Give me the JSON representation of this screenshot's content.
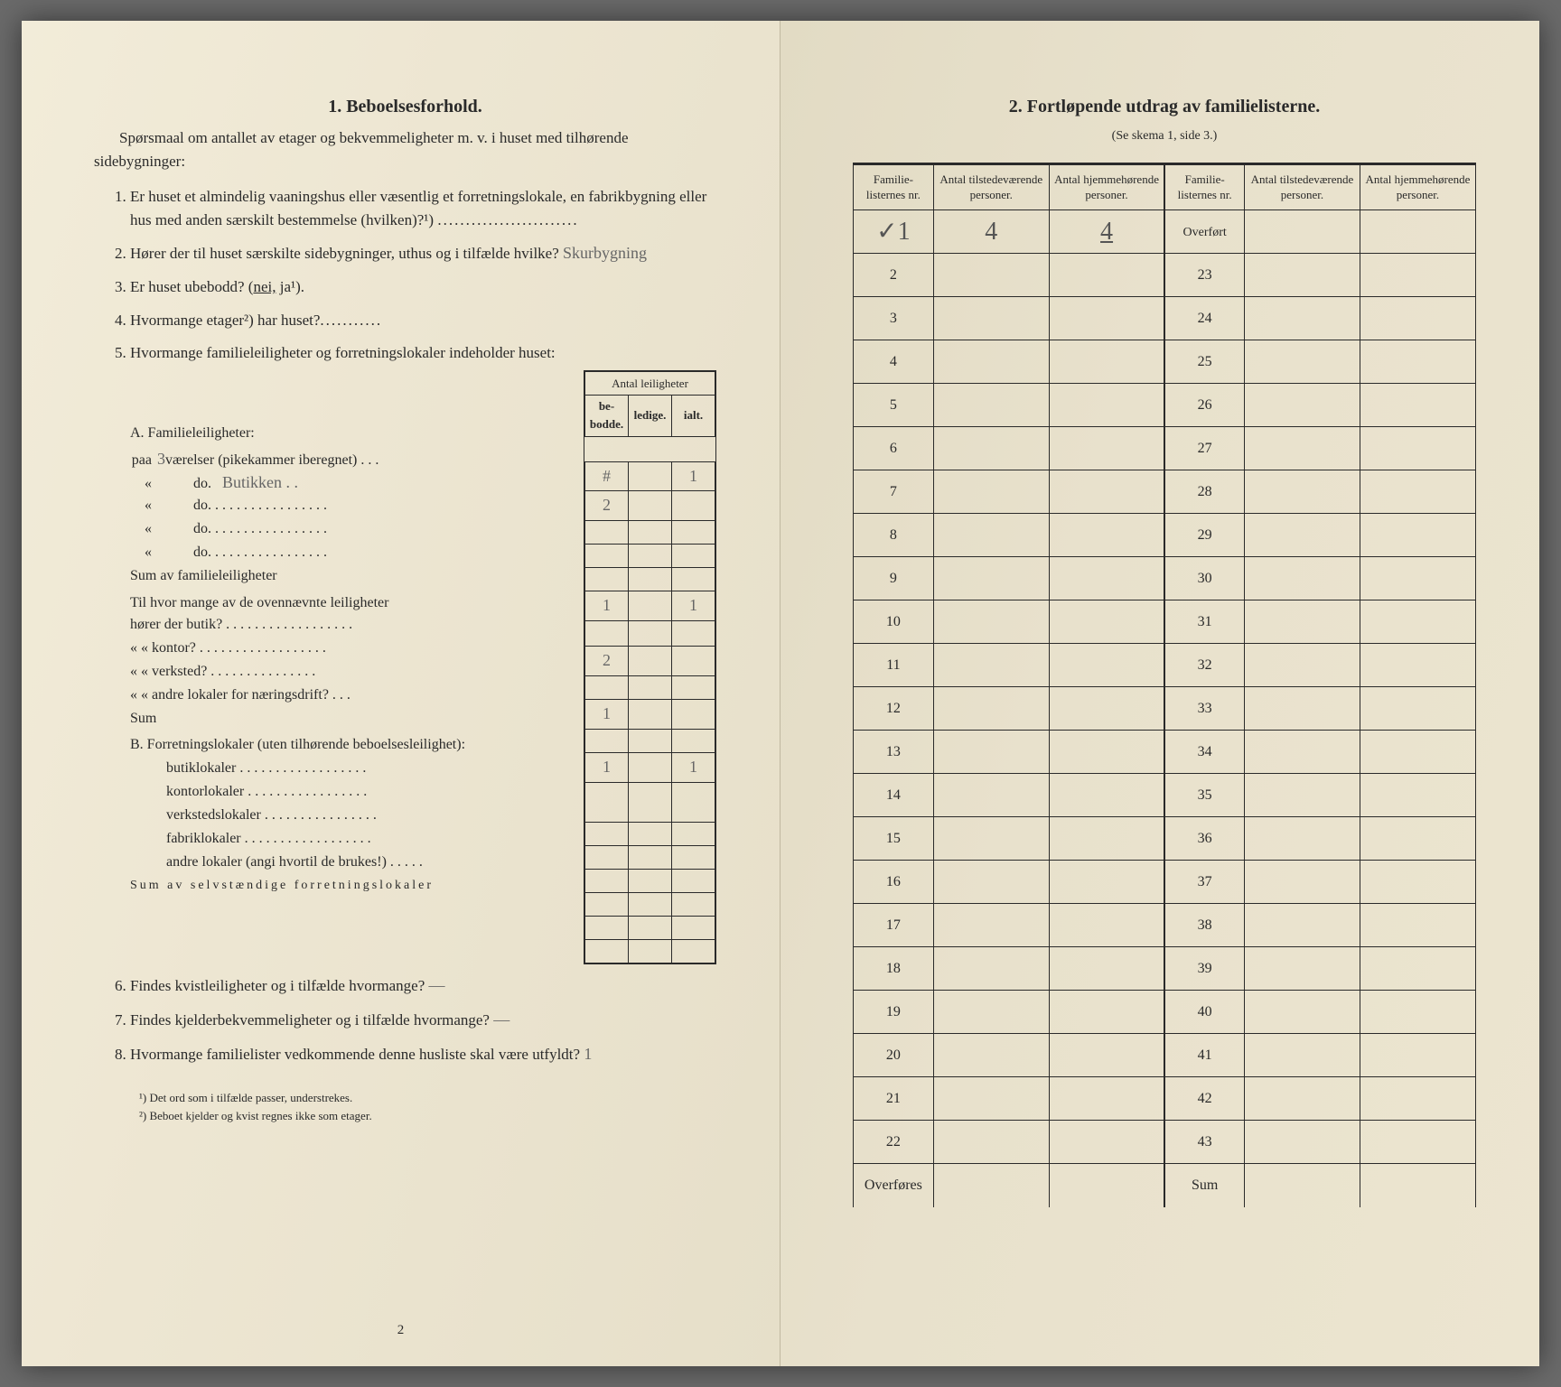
{
  "left": {
    "title": "1.   Beboelsesforhold.",
    "intro": "Spørsmaal om antallet av etager og bekvemmeligheter m. v. i huset med tilhørende sidebygninger:",
    "q1": "Er huset et almindelig vaaningshus eller væsentlig et forretningslokale, en fabrikbygning eller hus med anden særskilt bestemmelse (hvilken)?¹)",
    "q2": "Hører der til huset særskilte sidebygninger, uthus og i tilfælde hvilke?",
    "q2_hand": "Skurbygning",
    "q3_a": "Er huset ubebodd? (",
    "q3_nei": "nei,",
    "q3_ja": " ja",
    "q3_b": "¹).",
    "q4": "Hvormange etager²) har huset?",
    "q5": "Hvormange familieleiligheter og forretningslokaler indeholder huset:",
    "tbl_header_group": "Antal leiligheter",
    "tbl_h1": "be-\nbodde.",
    "tbl_h2": "ledige.",
    "tbl_h3": "ialt.",
    "labelA": "A. Familieleiligheter:",
    "rowA1_lead": "paa",
    "rowA1_hand": "3",
    "rowA1_body": " værelser (pikekammer iberegnet) . . .",
    "rowA1_v1": "#",
    "rowA1_v3": "1",
    "rowA2_lead": "«",
    "rowA2_body": "do.",
    "rowA2_hand2": "Butikken . .",
    "rowA2_v1": "2",
    "rowA3_lead": "«",
    "rowA3_body": "do.   . . . . . . . . . . . . . . . .",
    "rowA4_lead": "«",
    "rowA4_body": "do.   . . . . . . . . . . . . . . . .",
    "rowA5_lead": "«",
    "rowA5_body": "do.   . . . . . . . . . . . . . . . .",
    "sumA": "Sum av familieleiligheter",
    "sumA_v1": "1",
    "sumA_v3": "1",
    "tilhvor": "Til hvor mange av de ovennævnte leiligheter",
    "row_butik": "hører der butik? . . . . . . . . . . . . . . . . . .",
    "row_butik_v": "2",
    "row_kontor": "«     «   kontor? . . . . . . . . . . . . . . . . . .",
    "row_verksted": "«     «   verksted? . . . . . . . . . . . . . . .",
    "row_verksted_v": "1",
    "row_andre": "«     «   andre lokaler for næringsdrift? . . .",
    "sum2": "Sum",
    "sum2_v1": "1",
    "sum2_v3": "1",
    "labelB": "B. Forretningslokaler (uten tilhørende beboelsesleilighet):",
    "rowB1": "butiklokaler . . . . . . . . . . . . . . . . . .",
    "rowB2": "kontorlokaler  . . . . . . . . . . . . . . . . .",
    "rowB3": "verkstedslokaler . . . . . . . . . . . . . . . .",
    "rowB4": "fabriklokaler . . . . . . . . . . . . . . . . . .",
    "rowB5": "andre lokaler (angi hvortil de brukes!) . . . . .",
    "sumB": "Sum av selvstændige forretningslokaler",
    "q6": "Findes kvistleiligheter og i tilfælde hvormange?",
    "q6_hand": "—",
    "q7": "Findes kjelderbekvemmeligheter og i tilfælde hvormange?",
    "q7_hand": "—",
    "q8a": "Hvormange familielister vedkommende denne husliste skal være utfyldt?",
    "q8_hand": "1",
    "fn1": "¹) Det ord som i tilfælde passer, understrekes.",
    "fn2": "²) Beboet kjelder og kvist regnes ikke som etager.",
    "pagenum": "2"
  },
  "right": {
    "title": "2.   Fortløpende utdrag av familielisterne.",
    "subtitle": "(Se skema 1, side 3.)",
    "h_nr": "Familie-\nlisternes\nnr.",
    "h_til": "Antal\ntilstedeværende\npersoner.",
    "h_hjem": "Antal\nhjemmehørende\npersoner.",
    "overfort": "Overført",
    "row1_check": "✓1",
    "row1_til": "4",
    "row1_hjem": "4",
    "left_rows": [
      1,
      2,
      3,
      4,
      5,
      6,
      7,
      8,
      9,
      10,
      11,
      12,
      13,
      14,
      15,
      16,
      17,
      18,
      19,
      20,
      21,
      22
    ],
    "right_rows": [
      23,
      24,
      25,
      26,
      27,
      28,
      29,
      30,
      31,
      32,
      33,
      34,
      35,
      36,
      37,
      38,
      39,
      40,
      41,
      42,
      43
    ],
    "overfores": "Overføres",
    "sum": "Sum"
  }
}
